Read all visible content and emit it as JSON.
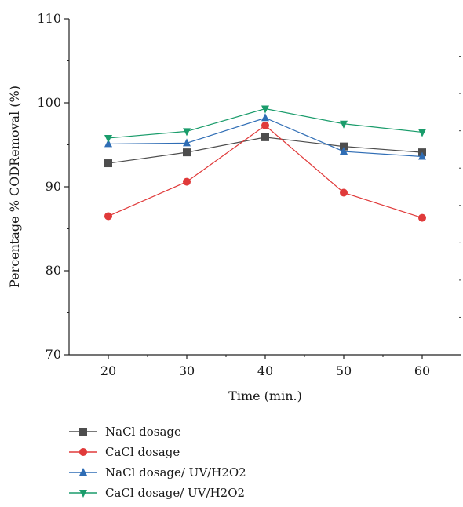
{
  "chart_data": {
    "type": "line",
    "title": "",
    "xlabel": "Time (min.)",
    "ylabel": "Percentage % CODRemoval (%)",
    "x": [
      20,
      30,
      40,
      50,
      60
    ],
    "xlim": [
      15,
      65
    ],
    "ylim": [
      70,
      110
    ],
    "xticks": [
      20,
      30,
      40,
      50,
      60
    ],
    "yticks": [
      70,
      80,
      90,
      100,
      110
    ],
    "grid": false,
    "legend_placement": "bottom",
    "series": [
      {
        "name": "NaCl dosage",
        "values": [
          92.8,
          94.1,
          95.9,
          94.8,
          94.1
        ],
        "color": "#4d4d4d",
        "marker": "square"
      },
      {
        "name": "CaCl dosage",
        "values": [
          86.5,
          90.6,
          97.3,
          89.3,
          86.3
        ],
        "color": "#e03a3a",
        "marker": "circle"
      },
      {
        "name": "NaCl dosage/ UV/H2O2",
        "values": [
          95.1,
          95.2,
          98.2,
          94.2,
          93.6
        ],
        "color": "#2f6db5",
        "marker": "triangle-up"
      },
      {
        "name": "CaCl dosage/ UV/H2O2",
        "values": [
          95.8,
          96.6,
          99.3,
          97.5,
          96.5
        ],
        "color": "#1a9c6b",
        "marker": "triangle-down"
      }
    ]
  }
}
